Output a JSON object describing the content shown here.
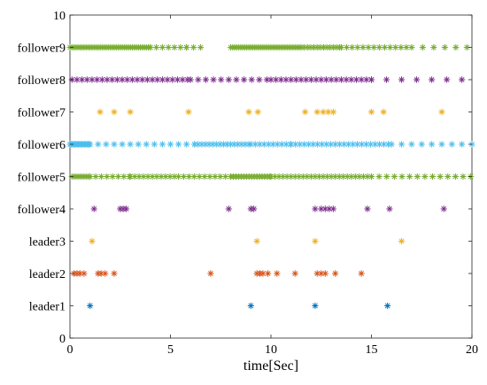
{
  "chart_data": {
    "type": "scatter",
    "xlabel": "time[Sec]",
    "ylabel": "",
    "xlim": [
      0,
      20
    ],
    "ylim": [
      0,
      10
    ],
    "xticks": [
      0,
      5,
      10,
      15,
      20
    ],
    "yticks": [
      "0",
      "leader1",
      "leader2",
      "leader3",
      "follower4",
      "follower5",
      "follower6",
      "follower7",
      "follower8",
      "follower9",
      "10"
    ],
    "grid": false,
    "marker": "asterisk",
    "series": [
      {
        "y": 1,
        "color": "#0072BD",
        "times": [
          1.0,
          9.0,
          12.2,
          15.8
        ]
      },
      {
        "y": 2,
        "color": "#D95319",
        "times": [
          0.2,
          0.35,
          0.5,
          0.7,
          1.4,
          1.55,
          1.75,
          2.2,
          7.0,
          9.3,
          9.45,
          9.6,
          9.85,
          10.3,
          11.2,
          12.3,
          12.5,
          12.7,
          13.2,
          14.5
        ]
      },
      {
        "y": 3,
        "color": "#EDB120",
        "times": [
          1.1,
          9.3,
          12.2,
          16.5
        ]
      },
      {
        "y": 4,
        "color": "#7E2F8E",
        "times": [
          1.2,
          2.5,
          2.65,
          2.8,
          7.9,
          9.0,
          9.15,
          12.2,
          12.5,
          12.7,
          12.9,
          13.1,
          14.8,
          15.9,
          18.6
        ]
      },
      {
        "y": 5,
        "color": "#77AC30",
        "intervals": [
          [
            0.1,
            1.0,
            0.1
          ],
          [
            1.0,
            3.0,
            0.28
          ],
          [
            3.0,
            5.4,
            0.22
          ],
          [
            5.4,
            8.0,
            0.26
          ],
          [
            8.0,
            10.0,
            0.13
          ],
          [
            10.0,
            15.0,
            0.2
          ],
          [
            15.0,
            20.0,
            0.38
          ]
        ]
      },
      {
        "y": 6,
        "color": "#4DBEEE",
        "intervals": [
          [
            0.0,
            1.0,
            0.06
          ],
          [
            1.0,
            6.2,
            0.4
          ],
          [
            6.2,
            9.0,
            0.18
          ],
          [
            9.0,
            11.0,
            0.22
          ],
          [
            11.0,
            16.0,
            0.22
          ],
          [
            16.0,
            20.0,
            0.5
          ]
        ]
      },
      {
        "y": 7,
        "color": "#EDB120",
        "times": [
          1.5,
          2.2,
          3.0,
          5.9,
          8.9,
          9.35,
          11.7,
          12.3,
          12.6,
          12.85,
          13.1,
          15.0,
          15.6,
          18.5
        ]
      },
      {
        "y": 8,
        "color": "#7E2F8E",
        "intervals": [
          [
            0.1,
            6.0,
            0.25
          ],
          [
            6.0,
            10.0,
            0.38
          ],
          [
            10.0,
            15.0,
            0.25
          ],
          [
            15.0,
            20.0,
            0.75
          ]
        ]
      },
      {
        "y": 9,
        "color": "#77AC30",
        "intervals": [
          [
            0.0,
            4.0,
            0.1
          ],
          [
            4.0,
            5.8,
            0.3
          ],
          [
            5.8,
            6.5,
            0.35
          ],
          [
            8.0,
            11.5,
            0.1
          ],
          [
            11.5,
            13.5,
            0.16
          ],
          [
            13.5,
            17.0,
            0.27
          ],
          [
            17.0,
            20.0,
            0.55
          ]
        ]
      }
    ]
  }
}
